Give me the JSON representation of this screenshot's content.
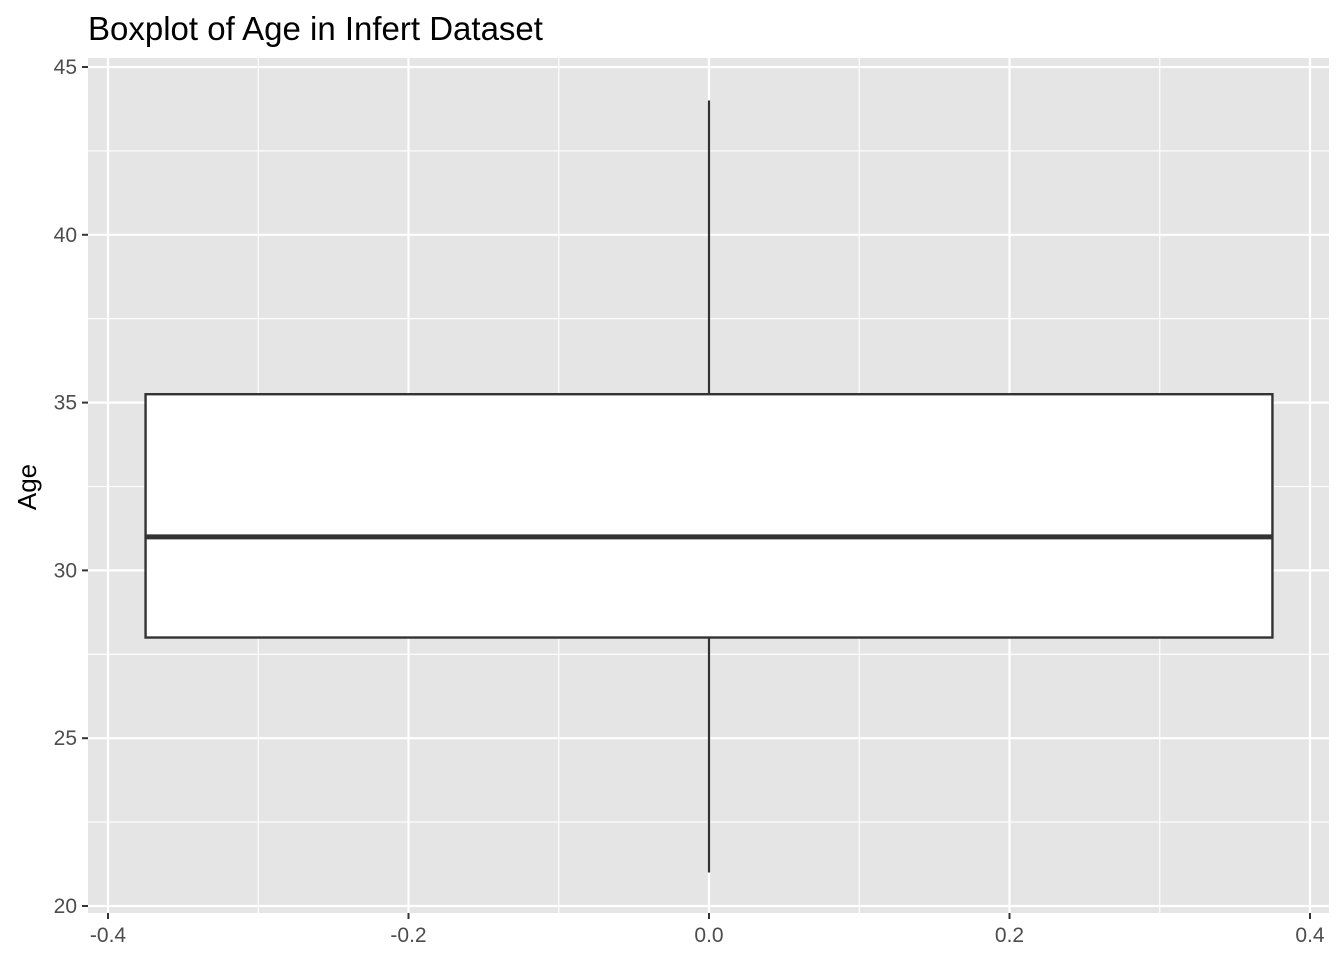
{
  "chart_data": {
    "type": "boxplot",
    "title": "Boxplot of Age in Infert Dataset",
    "xlabel": "",
    "ylabel": "Age",
    "xlim": [
      -0.4,
      0.4
    ],
    "ylim": [
      20,
      45
    ],
    "x_ticks": [
      "-0.4",
      "-0.2",
      "0.0",
      "0.2",
      "0.4"
    ],
    "y_ticks": [
      "20",
      "25",
      "30",
      "35",
      "40",
      "45"
    ],
    "box": {
      "x_center": 0.0,
      "x_from": -0.375,
      "x_to": 0.375,
      "whisker_low": 21,
      "q1": 28,
      "median": 31,
      "q3": 35.25,
      "whisker_high": 44
    },
    "grid": true,
    "colors": {
      "panel_background": "#e5e5e5",
      "grid_line": "#ffffff",
      "box_fill": "#ffffff",
      "box_stroke": "#333333",
      "tick_text": "#4d4d4d"
    }
  }
}
